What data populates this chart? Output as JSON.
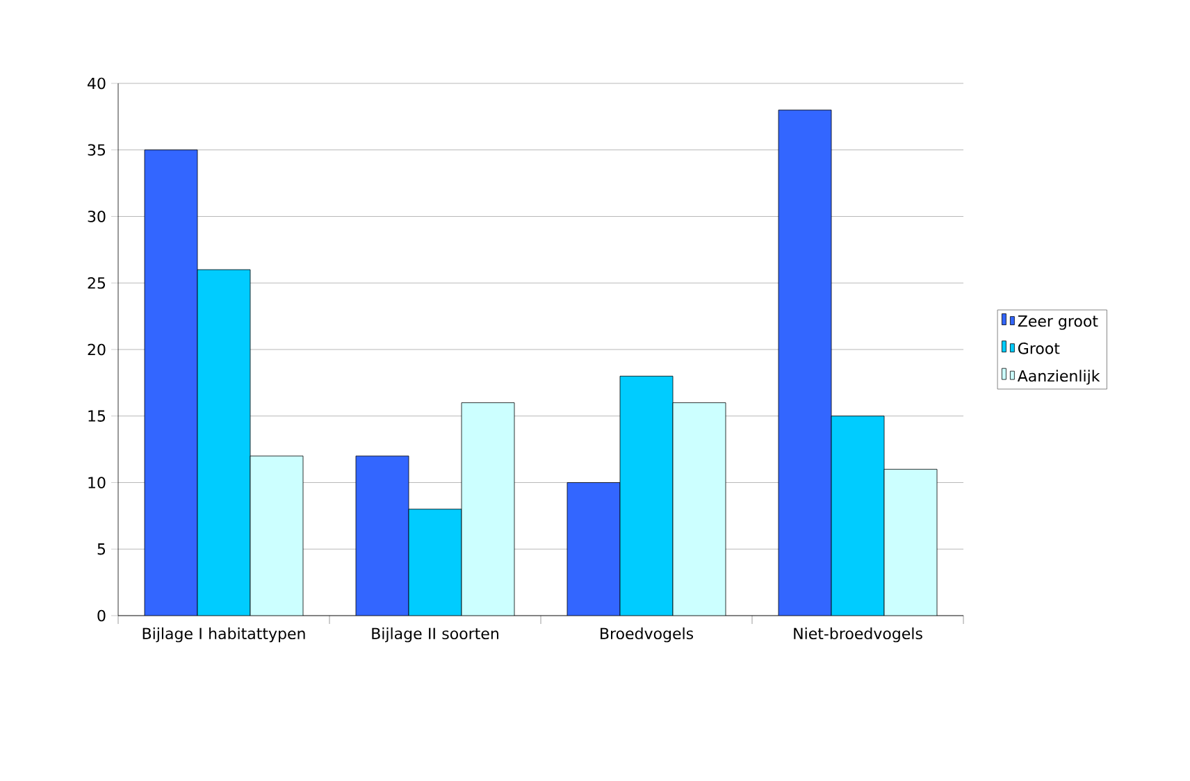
{
  "chart_data": {
    "type": "bar",
    "categories": [
      "Bijlage I habitattypen",
      "Bijlage II soorten",
      "Broedvogels",
      "Niet-broedvogels"
    ],
    "series": [
      {
        "name": "Zeer groot",
        "color": "#3366ff",
        "values": [
          35,
          12,
          10,
          38
        ]
      },
      {
        "name": "Groot",
        "color": "#00ccff",
        "values": [
          26,
          8,
          18,
          15
        ]
      },
      {
        "name": "Aanzienlijk",
        "color": "#ccffff",
        "values": [
          12,
          16,
          16,
          11
        ]
      }
    ],
    "ylim": [
      0,
      40
    ],
    "yticks": [
      0,
      5,
      10,
      15,
      20,
      25,
      30,
      35,
      40
    ],
    "grid": "y",
    "legend": "right"
  }
}
